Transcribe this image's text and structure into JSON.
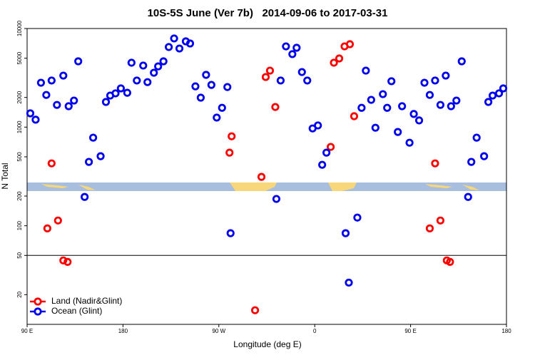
{
  "chart_data": {
    "type": "scatter",
    "title": "10S-5S June (Ver 7b)   2014-09-06 to 2017-03-31",
    "x_label": "Longitude (deg E)",
    "y_label": "N Total",
    "xlim": [
      90,
      540
    ],
    "xticks": [
      {
        "value": 90,
        "label": "90 E"
      },
      {
        "value": 180,
        "label": "180"
      },
      {
        "value": 270,
        "label": "90 W"
      },
      {
        "value": 360,
        "label": "0"
      },
      {
        "value": 450,
        "label": "90 E"
      },
      {
        "value": 540,
        "label": "180"
      }
    ],
    "ylim": [
      10,
      10000
    ],
    "yticks": [
      20,
      50,
      100,
      200,
      500,
      1000,
      2000,
      5000,
      10000
    ],
    "ylog": true,
    "hline": 50,
    "legend": "bottom-left",
    "series": [
      {
        "name": "Land (Nadir&Glint)",
        "color": "#ff0000",
        "x": [
          109,
          113,
          119,
          124,
          128,
          280,
          282,
          304,
          310,
          314,
          318,
          323,
          375,
          378,
          383,
          388,
          393,
          397,
          468,
          473,
          478,
          484,
          487
        ],
        "values": [
          94,
          429,
          113,
          44.5,
          43,
          551,
          807,
          13.9,
          313,
          3220,
          3740,
          1600,
          630,
          4500,
          4970,
          6590,
          6930,
          1290,
          94,
          429,
          113,
          44.5,
          43
        ]
      },
      {
        "name": "Ocean (Glint)",
        "color": "#0000ee",
        "x": [
          93,
          98,
          103,
          108,
          113,
          118,
          124,
          129,
          134,
          138,
          144,
          148,
          152,
          159,
          164,
          168,
          173,
          178,
          184,
          188,
          193,
          199,
          203,
          209,
          213,
          218,
          223,
          228,
          233,
          239,
          243,
          248,
          253,
          258,
          263,
          268,
          273,
          278,
          281,
          324,
          328,
          333,
          339,
          343,
          348,
          353,
          358,
          363,
          367,
          371,
          389,
          392,
          400,
          404,
          408,
          413,
          417,
          424,
          428,
          432,
          438,
          442,
          449,
          453,
          458,
          463,
          468,
          473,
          478,
          483,
          488,
          493,
          498,
          504,
          507,
          512,
          519,
          523,
          527,
          533,
          537
        ],
        "values": [
          1380,
          1190,
          2820,
          2120,
          2970,
          1680,
          3330,
          1630,
          1860,
          4650,
          196,
          444,
          782,
          507,
          1800,
          2090,
          2200,
          2470,
          2230,
          4500,
          2970,
          4210,
          2860,
          3560,
          4130,
          4650,
          6490,
          7930,
          6270,
          7410,
          7050,
          2590,
          1990,
          3390,
          2680,
          1250,
          1570,
          2550,
          84,
          187,
          2970,
          6590,
          5500,
          6380,
          3620,
          2970,
          970,
          1040,
          415,
          551,
          84,
          26.5,
          121,
          1570,
          3740,
          1890,
          986,
          2160,
          1570,
          2920,
          893,
          1630,
          695,
          1360,
          1170,
          2820,
          2120,
          2970,
          1680,
          3330,
          1630,
          1860,
          4650,
          196,
          444,
          782,
          507,
          1800,
          2090,
          2200,
          2470
        ]
      }
    ]
  }
}
